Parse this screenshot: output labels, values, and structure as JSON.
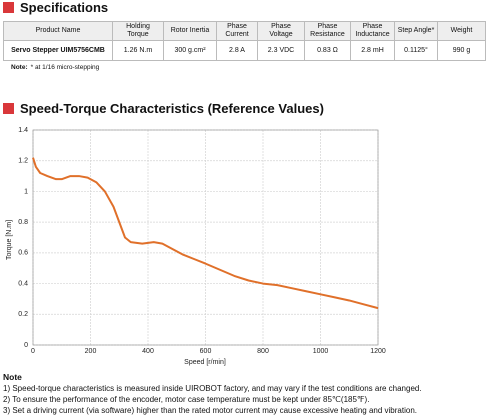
{
  "header": {
    "title": "Specifications"
  },
  "table": {
    "columns": [
      "Product Name",
      "Holding Torque",
      "Rotor Inertia",
      "Phase Current",
      "Phase Voltage",
      "Phase Resistance",
      "Phase Inductance",
      "Step Angle*",
      "Weight"
    ],
    "rows": [
      [
        "Servo Stepper UIM5756CMB",
        "1.26 N.m",
        "300 g.cm²",
        "2.8 A",
        "2.3 VDC",
        "0.83 Ω",
        "2.8 mH",
        "0.1125°",
        "990 g"
      ]
    ]
  },
  "table_note": {
    "label": "Note:",
    "text": "* at 1/16 micro-stepping"
  },
  "section": {
    "title": "Speed-Torque Characteristics (Reference Values)"
  },
  "chart_data": {
    "type": "line",
    "xlabel": "Speed [r/min]",
    "ylabel": "Torque [N.m]",
    "x": [
      0,
      10,
      25,
      50,
      80,
      100,
      130,
      160,
      190,
      220,
      250,
      280,
      300,
      320,
      340,
      380,
      420,
      450,
      480,
      520,
      560,
      600,
      650,
      700,
      750,
      800,
      850,
      900,
      950,
      1000,
      1050,
      1100,
      1150,
      1200
    ],
    "values": [
      1.22,
      1.16,
      1.12,
      1.1,
      1.08,
      1.08,
      1.1,
      1.1,
      1.09,
      1.06,
      1.0,
      0.9,
      0.8,
      0.7,
      0.67,
      0.66,
      0.67,
      0.66,
      0.63,
      0.59,
      0.56,
      0.53,
      0.49,
      0.45,
      0.42,
      0.4,
      0.39,
      0.37,
      0.35,
      0.33,
      0.31,
      0.29,
      0.265,
      0.24
    ],
    "color": "#e0702a",
    "xlim": [
      0,
      1200
    ],
    "ylim": [
      0,
      1.4
    ],
    "xticks": [
      0,
      200,
      400,
      600,
      800,
      1000,
      1200
    ],
    "yticks": [
      0,
      0.2,
      0.4,
      0.6,
      0.8,
      1,
      1.2,
      1.4
    ],
    "grid": true
  },
  "notes": {
    "title": "Note",
    "items": [
      "1)  Speed-torque characteristics is measured inside UIROBOT factory, and may vary if the test conditions are changed.",
      "2)  To ensure the performance of the encoder, motor case temperature must be kept under 85℃(185℉).",
      "3)  Set a driving current (via software) higher than the rated motor current may cause excessive heating and vibration."
    ]
  }
}
